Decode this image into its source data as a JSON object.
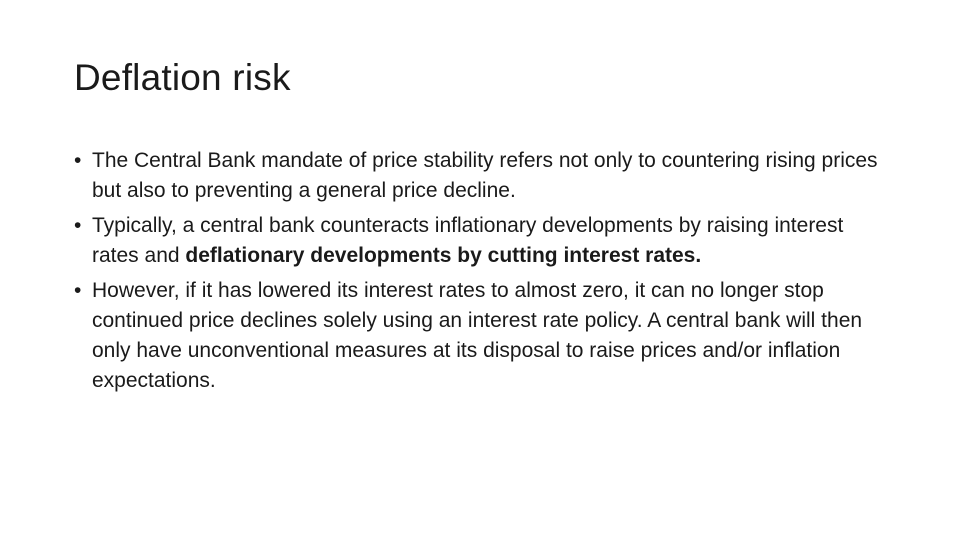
{
  "slide": {
    "title": "Deflation risk",
    "bullet_symbol": "•",
    "bullets": [
      {
        "text": "The  Central Bank mandate of price stability refers not only to countering rising prices but also to preventing a general price decline."
      },
      {
        "text_plain": " Typically, a central bank counteracts inflationary developments by raising interest rates and ",
        "text_bold": "deflationary developments by cutting interest rates."
      },
      {
        "text": "However, if it has lowered its interest rates to almost zero, it can no longer stop continued price declines solely using an interest rate policy. A central bank will then only have unconventional measures at its disposal to raise prices and/or inflation expectations."
      }
    ]
  }
}
